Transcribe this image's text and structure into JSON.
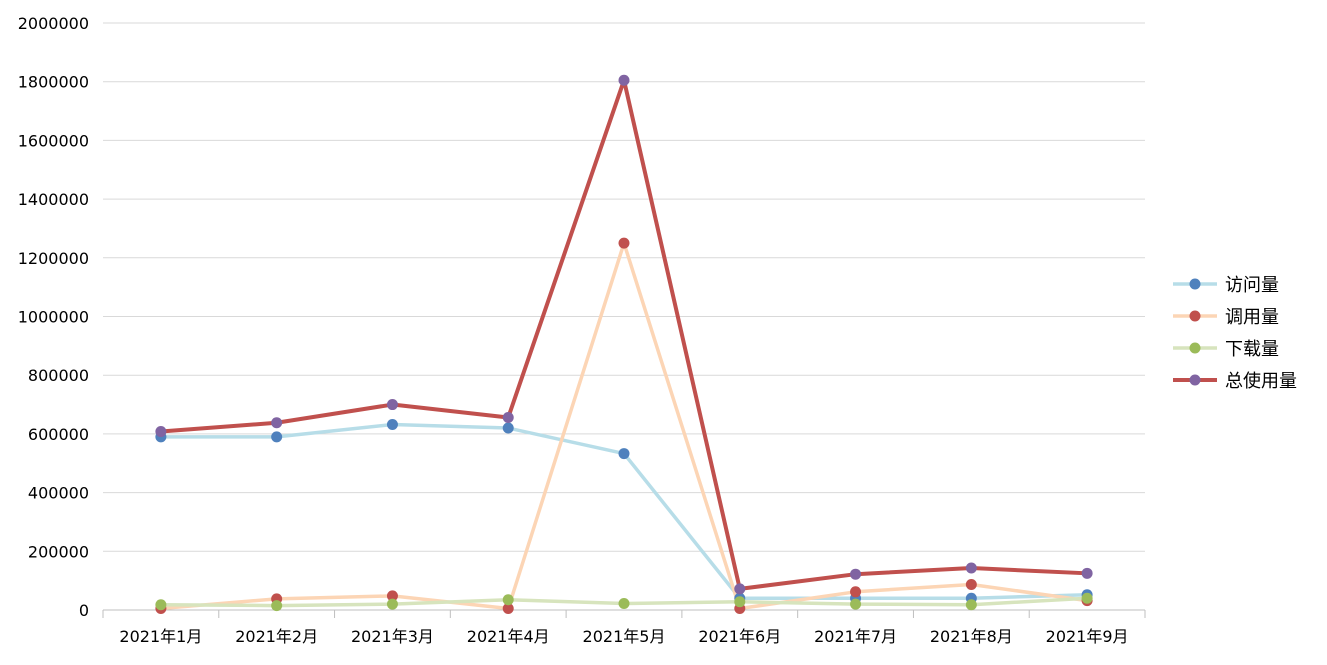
{
  "chart_data": {
    "type": "line",
    "title": "",
    "xlabel": "",
    "ylabel": "",
    "categories": [
      "2021年1月",
      "2021年2月",
      "2021年3月",
      "2021年4月",
      "2021年5月",
      "2021年6月",
      "2021年7月",
      "2021年8月",
      "2021年9月"
    ],
    "ylim": [
      0,
      2000000
    ],
    "yticks": [
      "0",
      "200000",
      "400000",
      "600000",
      "800000",
      "1000000",
      "1200000",
      "1400000",
      "1600000",
      "1800000",
      "2000000"
    ],
    "grid": true,
    "legend_position": "right",
    "series": [
      {
        "name": "访问量",
        "line_color": "#b7dde8",
        "marker_color": "#4f81bd",
        "emphasis": false,
        "values": [
          590000,
          590000,
          632000,
          620000,
          533000,
          40000,
          40000,
          40000,
          52000
        ]
      },
      {
        "name": "调用量",
        "line_color": "#fcd5b5",
        "marker_color": "#c0504d",
        "emphasis": false,
        "values": [
          5000,
          38000,
          48000,
          5000,
          1250000,
          5000,
          62000,
          87000,
          32000
        ]
      },
      {
        "name": "下载量",
        "line_color": "#d7e4bd",
        "marker_color": "#9bbb59",
        "emphasis": false,
        "values": [
          18000,
          15000,
          20000,
          35000,
          22000,
          28000,
          20000,
          18000,
          40000
        ]
      },
      {
        "name": "总使用量",
        "line_color": "#c0504d",
        "marker_color": "#8064a2",
        "emphasis": true,
        "values": [
          608000,
          638000,
          700000,
          656000,
          1805000,
          72000,
          122000,
          143000,
          125000
        ]
      }
    ]
  }
}
